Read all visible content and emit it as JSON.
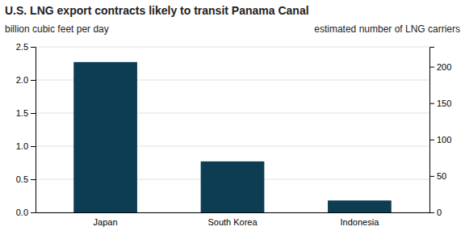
{
  "chart_data": {
    "type": "bar",
    "title": "U.S. LNG export contracts likely to transit Panama Canal",
    "subtitle": "billion cubic feet per day",
    "y2label": "estimated number of LNG carriers",
    "categories": [
      "Japan",
      "South Korea",
      "Indonesia"
    ],
    "values": [
      2.27,
      0.77,
      0.18
    ],
    "color": "#0d3d52",
    "ylim": [
      0,
      2.5
    ],
    "yticks": [
      {
        "value": 0,
        "label": "0.0"
      },
      0.5,
      {
        "value": 1,
        "label": "1.0"
      },
      1.5,
      {
        "value": 2,
        "label": "2.0"
      },
      2.5
    ],
    "y2lim": [
      0,
      227.27
    ],
    "y2ticks": [
      0,
      50,
      100,
      150,
      200
    ],
    "grid": true
  }
}
